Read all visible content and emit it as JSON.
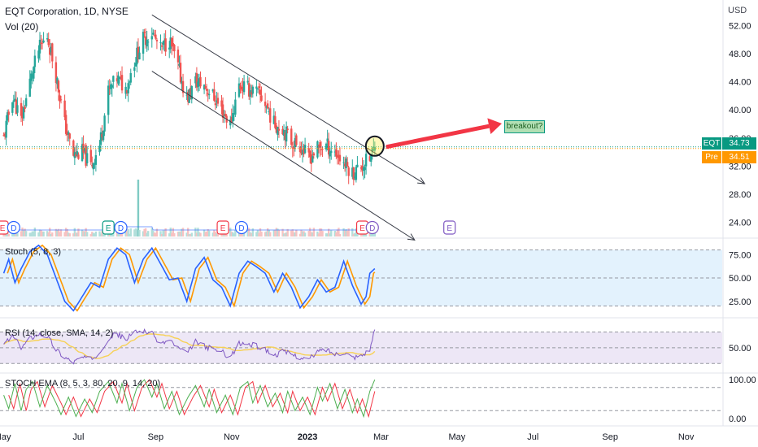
{
  "header": {
    "title": "EQT Corporation, 1D, NYSE",
    "volume_label": "Vol (20)",
    "currency": "USD"
  },
  "colors": {
    "up": "#26a69a",
    "down": "#ef5350",
    "channel": "#363a45",
    "arrow": "#f23645",
    "blue": "#2962ff",
    "orange": "#ff9800",
    "purple": "#7e57c2",
    "yellow": "#f7d154",
    "green": "#4caf50",
    "red": "#f23645",
    "stoch_fill": "#e3f2fd",
    "rsi_fill": "#ede7f6"
  },
  "price_tags": [
    {
      "label": "EQT",
      "value": "34.73",
      "color": "#089981"
    },
    {
      "label": "Pre",
      "value": "34.51",
      "color": "#ff9800"
    }
  ],
  "annotation": {
    "text": "breakout?"
  },
  "events": [
    {
      "date": "2022-05-01",
      "letter": "E",
      "color": "#f23645"
    },
    {
      "date": "2022-05-10",
      "letter": "D",
      "color": "#2962ff"
    },
    {
      "date": "2022-07-25",
      "letter": "E",
      "color": "#089981"
    },
    {
      "date": "2022-08-04",
      "letter": "D",
      "color": "#2962ff"
    },
    {
      "date": "2022-10-25",
      "letter": "E",
      "color": "#f23645"
    },
    {
      "date": "2022-11-09",
      "letter": "D",
      "color": "#2962ff"
    },
    {
      "date": "2023-02-14",
      "letter": "E",
      "color": "#f23645"
    },
    {
      "date": "2023-02-22",
      "letter": "D",
      "color": "#7e57c2"
    },
    {
      "date": "2023-04-25",
      "letter": "E",
      "color": "#7e57c2"
    }
  ],
  "chart_data": {
    "type": "candlestick",
    "title": "EQT Corporation, 1D, NYSE",
    "x_labels": [
      {
        "date": "2022-05-01",
        "text": "May"
      },
      {
        "date": "2022-07-01",
        "text": "Jul"
      },
      {
        "date": "2022-09-01",
        "text": "Sep"
      },
      {
        "date": "2022-11-01",
        "text": "Nov"
      },
      {
        "date": "2023-01-01",
        "text": "2023"
      },
      {
        "date": "2023-03-01",
        "text": "Mar"
      },
      {
        "date": "2023-05-01",
        "text": "May"
      },
      {
        "date": "2023-07-01",
        "text": "Jul"
      },
      {
        "date": "2023-09-01",
        "text": "Sep"
      },
      {
        "date": "2023-11-01",
        "text": "Nov"
      }
    ],
    "x_range": [
      "2022-04-29",
      "2023-11-30"
    ],
    "price": {
      "ylim": [
        22,
        54
      ],
      "ticks": [
        24,
        28,
        32,
        36,
        40,
        44,
        48,
        52
      ],
      "tick_labels": [
        "24.00",
        "28.00",
        "32.00",
        "36.00",
        "40.00",
        "44.00",
        "48.00",
        "52.00"
      ],
      "last_close": 34.73,
      "pre_market": 34.51,
      "path": [
        [
          "2022-05-02",
          36.0
        ],
        [
          "2022-05-09",
          42.0
        ],
        [
          "2022-05-16",
          38.5
        ],
        [
          "2022-05-23",
          44.0
        ],
        [
          "2022-05-30",
          48.5
        ],
        [
          "2022-06-06",
          50.5
        ],
        [
          "2022-06-13",
          45.0
        ],
        [
          "2022-06-20",
          38.0
        ],
        [
          "2022-06-27",
          33.5
        ],
        [
          "2022-07-04",
          34.0
        ],
        [
          "2022-07-11",
          32.0
        ],
        [
          "2022-07-18",
          35.0
        ],
        [
          "2022-07-25",
          42.5
        ],
        [
          "2022-08-01",
          44.5
        ],
        [
          "2022-08-08",
          43.0
        ],
        [
          "2022-08-15",
          47.0
        ],
        [
          "2022-08-22",
          50.0
        ],
        [
          "2022-08-29",
          51.0
        ],
        [
          "2022-09-05",
          48.5
        ],
        [
          "2022-09-12",
          50.0
        ],
        [
          "2022-09-19",
          46.0
        ],
        [
          "2022-09-26",
          41.5
        ],
        [
          "2022-10-03",
          44.0
        ],
        [
          "2022-10-10",
          43.5
        ],
        [
          "2022-10-17",
          42.0
        ],
        [
          "2022-10-24",
          40.0
        ],
        [
          "2022-10-31",
          38.0
        ],
        [
          "2022-11-07",
          43.5
        ],
        [
          "2022-11-14",
          43.0
        ],
        [
          "2022-11-21",
          42.5
        ],
        [
          "2022-11-28",
          41.0
        ],
        [
          "2022-12-05",
          38.0
        ],
        [
          "2022-12-12",
          37.5
        ],
        [
          "2022-12-19",
          35.5
        ],
        [
          "2022-12-26",
          35.0
        ],
        [
          "2023-01-02",
          33.0
        ],
        [
          "2023-01-09",
          34.5
        ],
        [
          "2023-01-16",
          35.0
        ],
        [
          "2023-01-23",
          34.0
        ],
        [
          "2023-01-30",
          32.5
        ],
        [
          "2023-02-06",
          31.0
        ],
        [
          "2023-02-13",
          32.0
        ],
        [
          "2023-02-20",
          33.0
        ],
        [
          "2023-02-24",
          34.73
        ]
      ]
    },
    "volume": {
      "label": "Vol (20)",
      "spike_date": "2022-08-18"
    },
    "channel": {
      "upper": [
        [
          "2022-08-29",
          53.5
        ],
        [
          "2023-04-05",
          29.5
        ]
      ],
      "lower": [
        [
          "2022-08-29",
          45.5
        ],
        [
          "2023-03-28",
          21.5
        ]
      ]
    },
    "stoch": {
      "label": "Stoch (5, 8, 3)",
      "ylim": [
        10,
        90
      ],
      "ticks": [
        25,
        50,
        75
      ],
      "tick_labels": [
        "25.00",
        "50.00",
        "75.00"
      ],
      "bands": [
        20,
        50,
        80
      ],
      "path": [
        [
          "2022-05-02",
          55
        ],
        [
          "2022-05-06",
          70
        ],
        [
          "2022-05-11",
          45
        ],
        [
          "2022-05-16",
          60
        ],
        [
          "2022-05-23",
          78
        ],
        [
          "2022-05-30",
          85
        ],
        [
          "2022-06-06",
          75
        ],
        [
          "2022-06-13",
          50
        ],
        [
          "2022-06-20",
          25
        ],
        [
          "2022-06-27",
          15
        ],
        [
          "2022-07-04",
          30
        ],
        [
          "2022-07-11",
          45
        ],
        [
          "2022-07-18",
          40
        ],
        [
          "2022-07-25",
          70
        ],
        [
          "2022-08-01",
          82
        ],
        [
          "2022-08-08",
          75
        ],
        [
          "2022-08-15",
          45
        ],
        [
          "2022-08-22",
          70
        ],
        [
          "2022-08-29",
          82
        ],
        [
          "2022-09-05",
          65
        ],
        [
          "2022-09-12",
          48
        ],
        [
          "2022-09-19",
          50
        ],
        [
          "2022-09-26",
          25
        ],
        [
          "2022-10-03",
          60
        ],
        [
          "2022-10-10",
          72
        ],
        [
          "2022-10-17",
          48
        ],
        [
          "2022-10-24",
          40
        ],
        [
          "2022-10-31",
          20
        ],
        [
          "2022-11-07",
          55
        ],
        [
          "2022-11-14",
          68
        ],
        [
          "2022-11-21",
          62
        ],
        [
          "2022-11-28",
          55
        ],
        [
          "2022-12-05",
          35
        ],
        [
          "2022-12-12",
          55
        ],
        [
          "2022-12-19",
          40
        ],
        [
          "2022-12-26",
          18
        ],
        [
          "2023-01-02",
          30
        ],
        [
          "2023-01-09",
          48
        ],
        [
          "2023-01-16",
          35
        ],
        [
          "2023-01-23",
          40
        ],
        [
          "2023-01-30",
          68
        ],
        [
          "2023-02-06",
          42
        ],
        [
          "2023-02-13",
          22
        ],
        [
          "2023-02-17",
          30
        ],
        [
          "2023-02-20",
          55
        ],
        [
          "2023-02-24",
          60
        ]
      ],
      "lag_days": 3
    },
    "rsi": {
      "label": "RSI (14, close, SMA, 14, 2)",
      "ylim": [
        20,
        85
      ],
      "ticks": [
        50
      ],
      "tick_labels": [
        "50.00"
      ],
      "bands": [
        30,
        50,
        70
      ],
      "path": [
        [
          "2022-05-02",
          55
        ],
        [
          "2022-05-09",
          65
        ],
        [
          "2022-05-16",
          50
        ],
        [
          "2022-05-23",
          62
        ],
        [
          "2022-05-30",
          68
        ],
        [
          "2022-06-06",
          65
        ],
        [
          "2022-06-13",
          48
        ],
        [
          "2022-06-20",
          38
        ],
        [
          "2022-06-27",
          32
        ],
        [
          "2022-07-04",
          38
        ],
        [
          "2022-07-11",
          35
        ],
        [
          "2022-07-18",
          45
        ],
        [
          "2022-07-25",
          62
        ],
        [
          "2022-08-01",
          68
        ],
        [
          "2022-08-08",
          60
        ],
        [
          "2022-08-15",
          70
        ],
        [
          "2022-08-22",
          72
        ],
        [
          "2022-08-29",
          68
        ],
        [
          "2022-09-05",
          55
        ],
        [
          "2022-09-12",
          60
        ],
        [
          "2022-09-19",
          50
        ],
        [
          "2022-09-26",
          42
        ],
        [
          "2022-10-03",
          58
        ],
        [
          "2022-10-10",
          52
        ],
        [
          "2022-10-17",
          48
        ],
        [
          "2022-10-24",
          45
        ],
        [
          "2022-10-31",
          38
        ],
        [
          "2022-11-07",
          55
        ],
        [
          "2022-11-14",
          55
        ],
        [
          "2022-11-21",
          52
        ],
        [
          "2022-11-28",
          48
        ],
        [
          "2022-12-05",
          40
        ],
        [
          "2022-12-12",
          45
        ],
        [
          "2022-12-19",
          42
        ],
        [
          "2022-12-26",
          38
        ],
        [
          "2023-01-02",
          35
        ],
        [
          "2023-01-09",
          45
        ],
        [
          "2023-01-16",
          48
        ],
        [
          "2023-01-23",
          42
        ],
        [
          "2023-01-30",
          45
        ],
        [
          "2023-02-06",
          38
        ],
        [
          "2023-02-13",
          40
        ],
        [
          "2023-02-20",
          48
        ],
        [
          "2023-02-24",
          72
        ]
      ],
      "ma_window": 5
    },
    "stoch_ema": {
      "label": "STOCH EMA (8, 5, 3, 80, 20, 9, 14, 20)",
      "ylim": [
        -15,
        115
      ],
      "ticks": [
        0,
        100
      ],
      "tick_labels": [
        "0.00",
        "100.00"
      ],
      "bands": [
        20,
        80
      ],
      "green_path": [
        [
          "2022-05-02",
          60
        ],
        [
          "2022-05-06",
          25
        ],
        [
          "2022-05-11",
          90
        ],
        [
          "2022-05-16",
          20
        ],
        [
          "2022-05-20",
          75
        ],
        [
          "2022-05-25",
          95
        ],
        [
          "2022-05-31",
          30
        ],
        [
          "2022-06-06",
          85
        ],
        [
          "2022-06-13",
          40
        ],
        [
          "2022-06-17",
          10
        ],
        [
          "2022-06-23",
          55
        ],
        [
          "2022-06-29",
          5
        ],
        [
          "2022-07-06",
          50
        ],
        [
          "2022-07-12",
          15
        ],
        [
          "2022-07-18",
          70
        ],
        [
          "2022-07-25",
          95
        ],
        [
          "2022-08-01",
          40
        ],
        [
          "2022-08-05",
          90
        ],
        [
          "2022-08-11",
          20
        ],
        [
          "2022-08-17",
          80
        ],
        [
          "2022-08-23",
          100
        ],
        [
          "2022-08-29",
          55
        ],
        [
          "2022-09-02",
          90
        ],
        [
          "2022-09-08",
          25
        ],
        [
          "2022-09-14",
          70
        ],
        [
          "2022-09-20",
          10
        ],
        [
          "2022-09-27",
          55
        ],
        [
          "2022-10-03",
          85
        ],
        [
          "2022-10-10",
          30
        ],
        [
          "2022-10-14",
          75
        ],
        [
          "2022-10-20",
          15
        ],
        [
          "2022-10-27",
          60
        ],
        [
          "2022-11-02",
          10
        ],
        [
          "2022-11-08",
          80
        ],
        [
          "2022-11-14",
          95
        ],
        [
          "2022-11-18",
          40
        ],
        [
          "2022-11-24",
          85
        ],
        [
          "2022-11-30",
          30
        ],
        [
          "2022-12-06",
          65
        ],
        [
          "2022-12-12",
          15
        ],
        [
          "2022-12-16",
          70
        ],
        [
          "2022-12-22",
          20
        ],
        [
          "2022-12-28",
          55
        ],
        [
          "2023-01-03",
          10
        ],
        [
          "2023-01-09",
          80
        ],
        [
          "2023-01-13",
          45
        ],
        [
          "2023-01-19",
          90
        ],
        [
          "2023-01-25",
          25
        ],
        [
          "2023-01-31",
          75
        ],
        [
          "2023-02-06",
          15
        ],
        [
          "2023-02-10",
          50
        ],
        [
          "2023-02-15",
          5
        ],
        [
          "2023-02-20",
          70
        ],
        [
          "2023-02-24",
          100
        ]
      ],
      "red_lag_days": 4
    }
  }
}
